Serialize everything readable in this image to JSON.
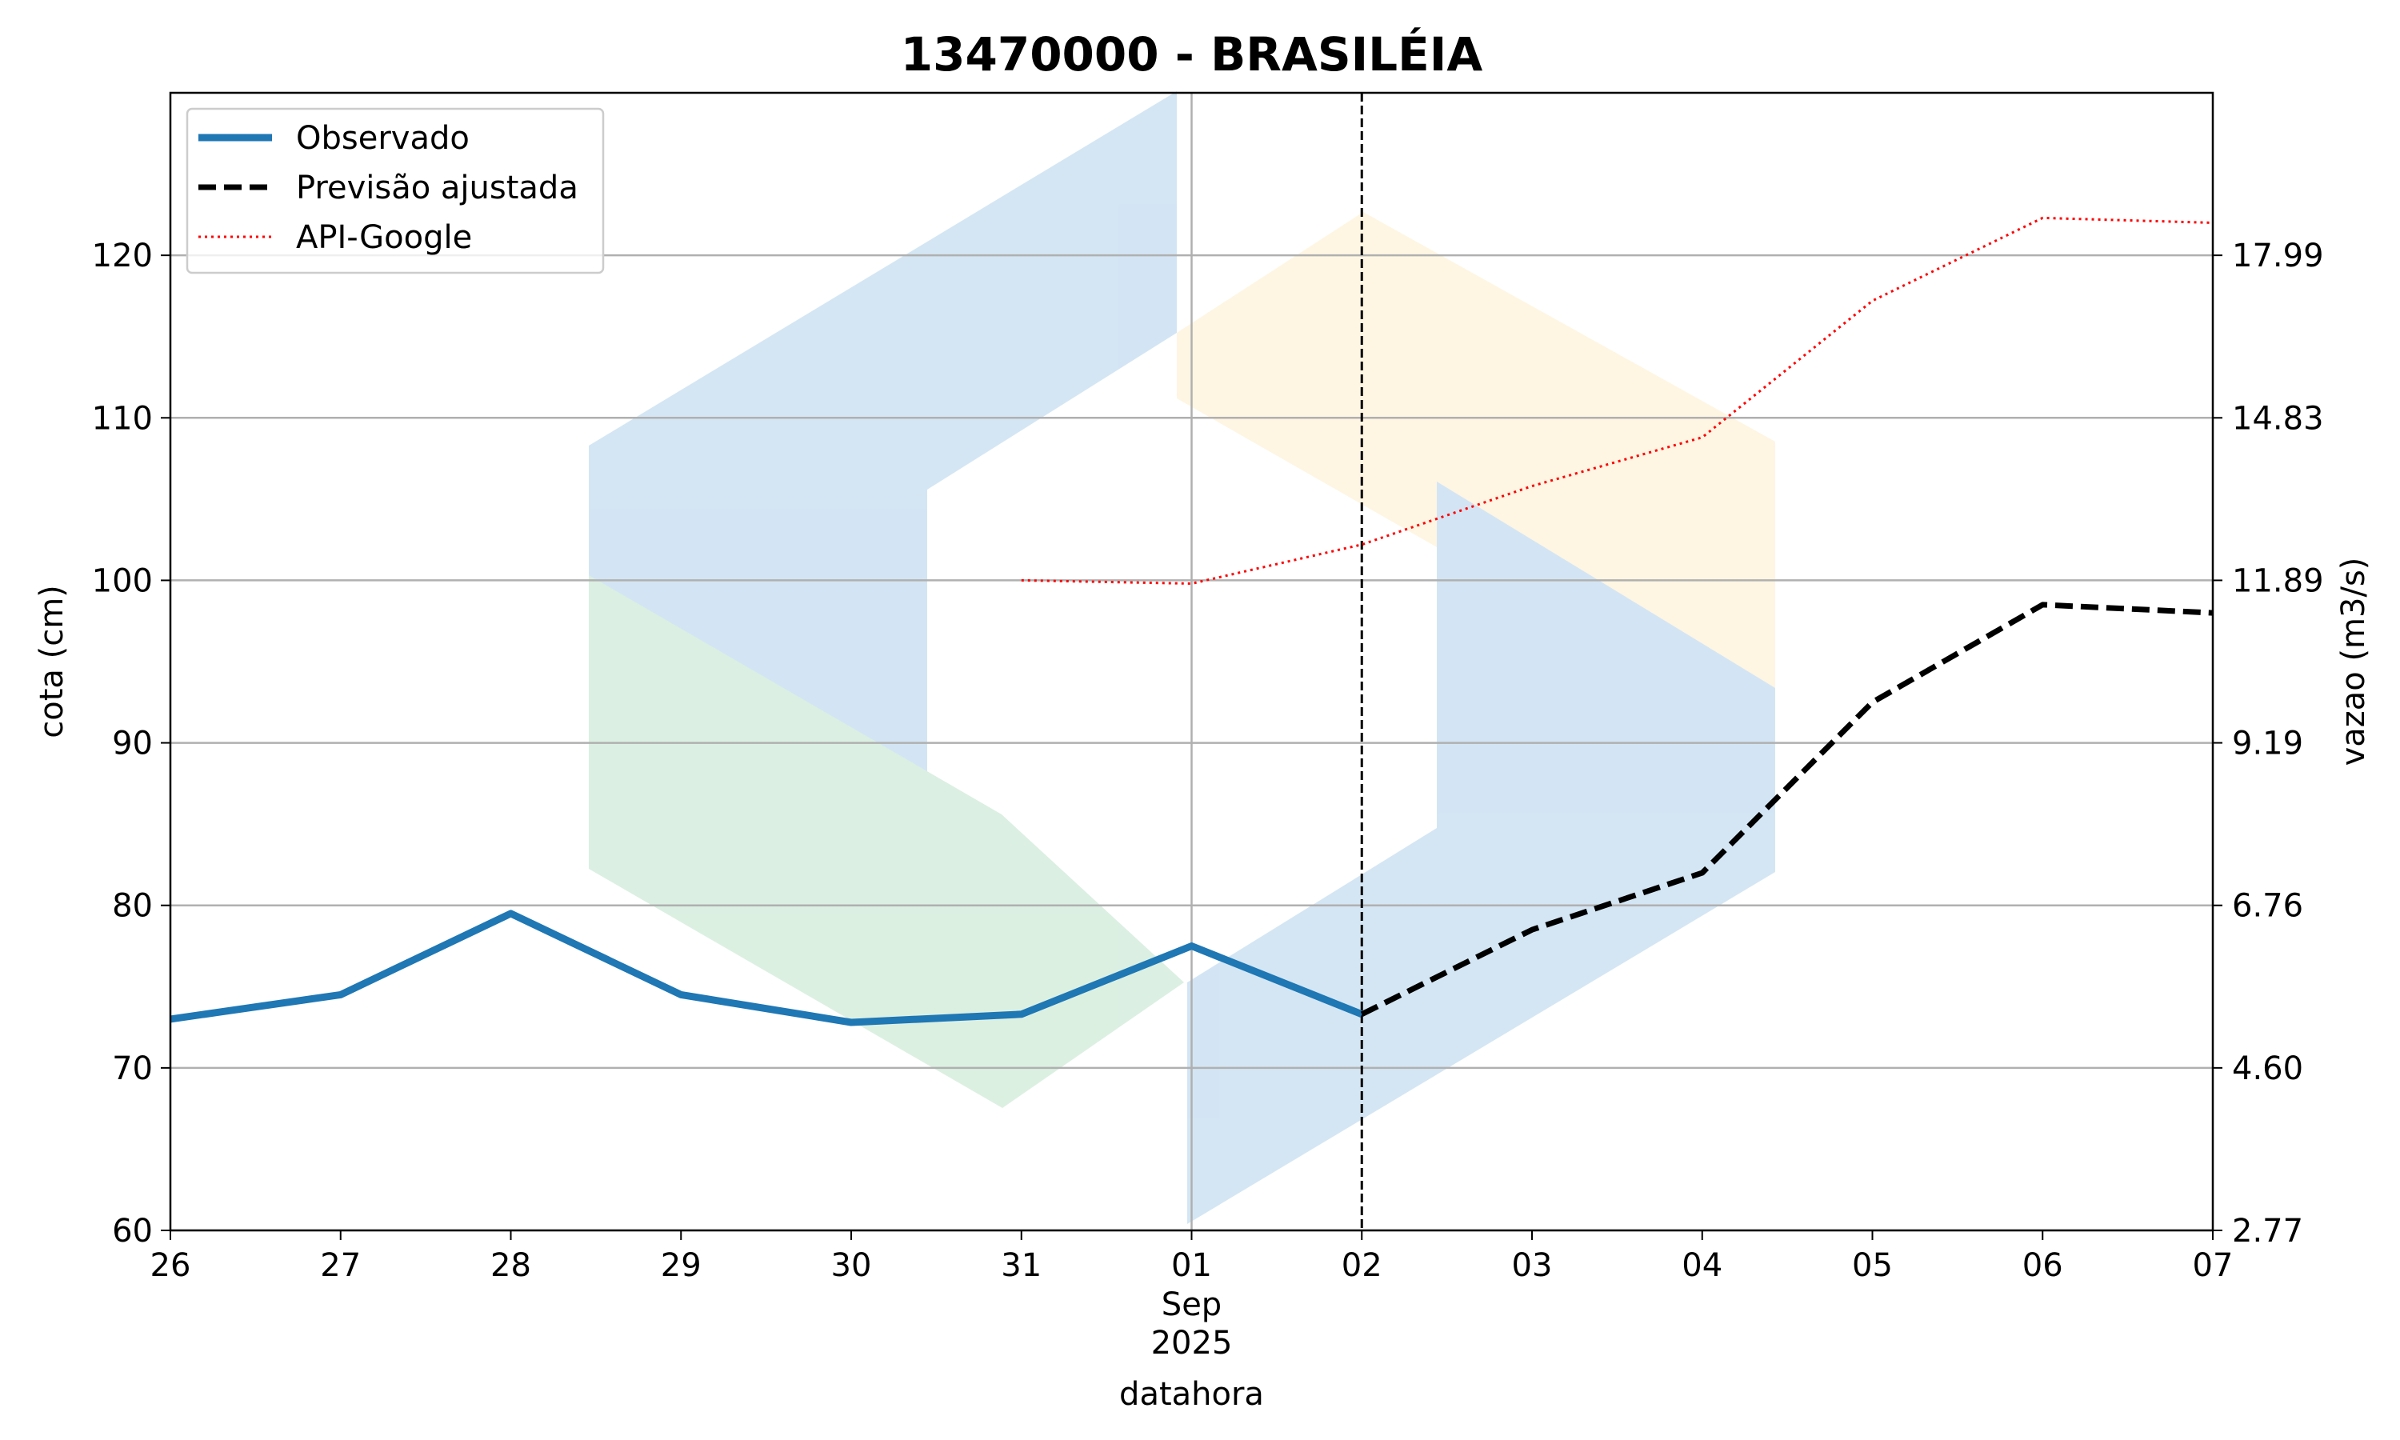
{
  "chart_data": {
    "type": "line",
    "title": "13470000 - BRASILÉIA",
    "xlabel": "datahora",
    "ylabel": "cota (cm)",
    "ylabel_right": "vazao (m3/s)",
    "x_ticks": [
      "26",
      "27",
      "28",
      "29",
      "30",
      "31",
      "01",
      "02",
      "03",
      "04",
      "05",
      "06",
      "07"
    ],
    "x_subtick_month": "Sep",
    "x_subtick_year": "2025",
    "x_range": [
      "2025-08-26",
      "2025-09-07"
    ],
    "ylim": [
      60,
      130
    ],
    "y_ticks": [
      60,
      70,
      80,
      90,
      100,
      110,
      120
    ],
    "y_right_ticks": [
      {
        "cota": 60,
        "label": "2.77"
      },
      {
        "cota": 70,
        "label": "4.60"
      },
      {
        "cota": 80,
        "label": "6.76"
      },
      {
        "cota": 90,
        "label": "9.19"
      },
      {
        "cota": 100,
        "label": "11.89"
      },
      {
        "cota": 110,
        "label": "14.83"
      },
      {
        "cota": 120,
        "label": "17.99"
      }
    ],
    "grid": true,
    "legend_placement": "top-left",
    "forecast_start": "2025-09-02",
    "series": [
      {
        "name": "Observado",
        "color": "#1f77b4",
        "style": "solid",
        "points": [
          [
            "2025-08-26",
            73
          ],
          [
            "2025-08-27",
            74.5
          ],
          [
            "2025-08-28",
            79.5
          ],
          [
            "2025-08-29",
            74.5
          ],
          [
            "2025-08-30",
            72.8
          ],
          [
            "2025-08-31",
            73.3
          ],
          [
            "2025-09-01",
            77.5
          ],
          [
            "2025-09-02",
            73.3
          ]
        ]
      },
      {
        "name": "Previsão ajustada",
        "color": "#000000",
        "style": "dashed",
        "points": [
          [
            "2025-09-02",
            73.3
          ],
          [
            "2025-09-03",
            78.5
          ],
          [
            "2025-09-04",
            82
          ],
          [
            "2025-09-05",
            92.5
          ],
          [
            "2025-09-06",
            98.5
          ],
          [
            "2025-09-07",
            98
          ]
        ]
      },
      {
        "name": "API-Google",
        "color": "#ff0000",
        "style": "dotted",
        "points": [
          [
            "2025-08-31",
            100
          ],
          [
            "2025-09-01",
            99.8
          ],
          [
            "2025-09-02",
            102.2
          ],
          [
            "2025-09-03",
            105.8
          ],
          [
            "2025-09-04",
            108.8
          ],
          [
            "2025-09-05",
            117.2
          ],
          [
            "2025-09-06",
            122.3
          ],
          [
            "2025-09-07",
            122
          ]
        ]
      }
    ]
  }
}
